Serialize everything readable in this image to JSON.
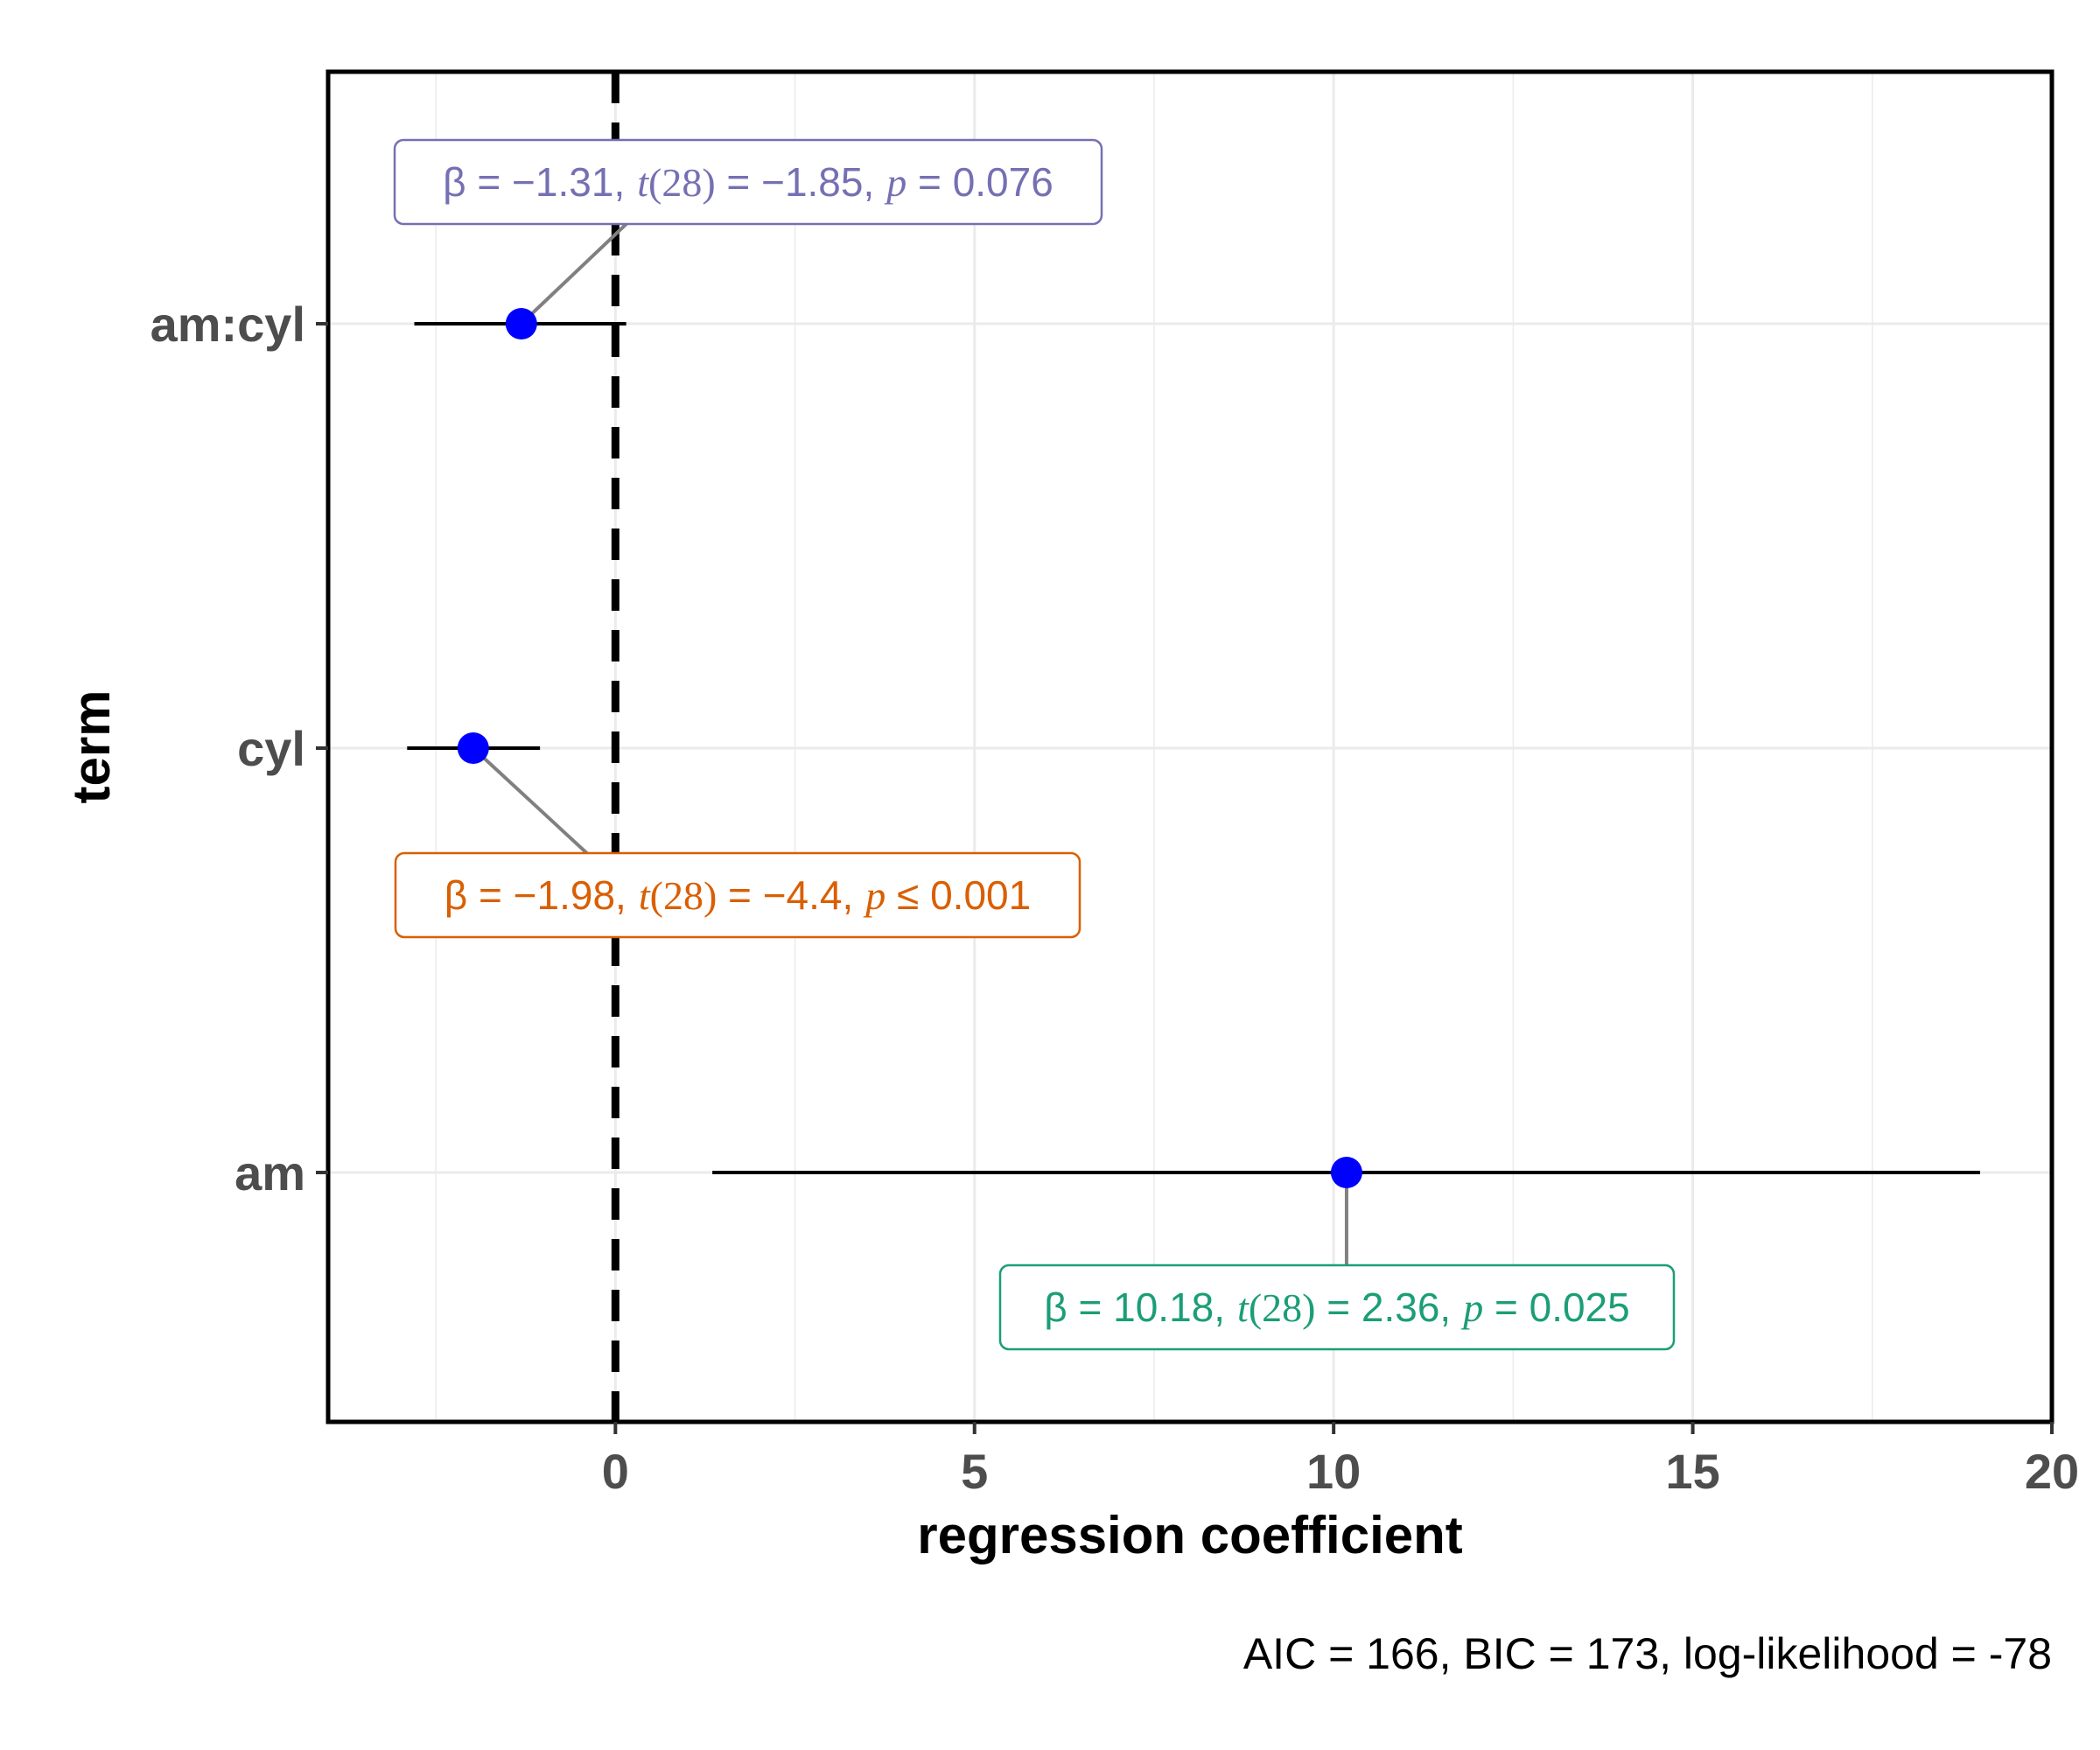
{
  "chart_data": {
    "type": "dot-whisker",
    "xlabel": "regression coefficient",
    "ylabel": "term",
    "xlim": [
      -4,
      20
    ],
    "x_ticks": [
      0,
      5,
      10,
      15,
      20
    ],
    "reference_line_x": 0,
    "caption": "AIC = 166, BIC = 173, log-likelihood = -78",
    "terms": [
      {
        "name": "am:cyl",
        "estimate": -1.31,
        "ci_low": -2.8,
        "ci_high": 0.15,
        "label_color": "#7570b3",
        "label": {
          "beta": "β = −1.31,",
          "t_sym": "t",
          "t_df": "(28)",
          "t_val": " = −1.85,",
          "p_sym": "p",
          "p_val": " = 0.076"
        }
      },
      {
        "name": "cyl",
        "estimate": -1.98,
        "ci_low": -2.9,
        "ci_high": -1.05,
        "label_color": "#d95f02",
        "label": {
          "beta": "β = −1.98,",
          "t_sym": "t",
          "t_df": "(28)",
          "t_val": " = −4.4,",
          "p_sym": "p",
          "p_val": " ≤ 0.001"
        }
      },
      {
        "name": "am",
        "estimate": 10.18,
        "ci_low": 1.35,
        "ci_high": 19.0,
        "label_color": "#1b9e77",
        "label": {
          "beta": "β = 10.18,",
          "t_sym": "t",
          "t_df": "(28)",
          "t_val": " = 2.36,",
          "p_sym": "p",
          "p_val": " = 0.025"
        }
      }
    ],
    "point_color": "#0000ff",
    "grid": true
  }
}
